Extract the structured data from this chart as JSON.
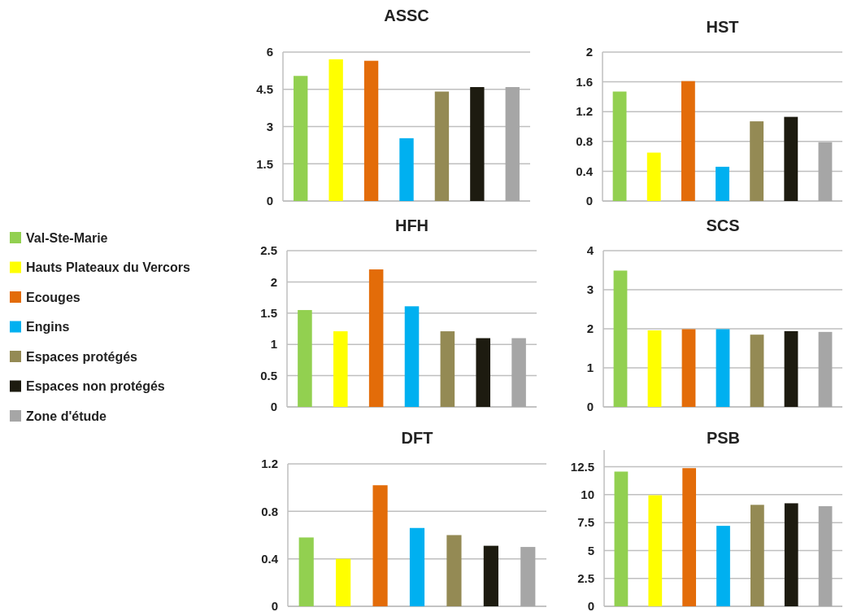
{
  "chart_data": [
    {
      "type": "bar",
      "title": "ASSC",
      "categories": [
        null
      ],
      "ylim": [
        0,
        6
      ],
      "yticks": [
        0,
        1.5,
        3,
        4.5,
        6
      ],
      "grid": "y",
      "legend": "left",
      "series": [
        {
          "name": "Val-Ste-Marie",
          "color": "#92d050",
          "values": [
            5.04
          ]
        },
        {
          "name": "Hauts Plateaux du Vercors",
          "color": "#ffff00",
          "values": [
            5.71
          ]
        },
        {
          "name": "Ecouges",
          "color": "#e36c09",
          "values": [
            5.65
          ]
        },
        {
          "name": "Engins",
          "color": "#00b0f0",
          "values": [
            2.53
          ]
        },
        {
          "name": "Espaces protégés",
          "color": "#948a54",
          "values": [
            4.41
          ]
        },
        {
          "name": "Espaces non protégés",
          "color": "#1d1b10",
          "values": [
            4.59
          ]
        },
        {
          "name": "Zone d'étude",
          "color": "#a6a6a6",
          "values": [
            4.59
          ]
        }
      ]
    },
    {
      "type": "bar",
      "title": "HST",
      "categories": [
        null
      ],
      "ylim": [
        0,
        2
      ],
      "yticks": [
        0,
        0.4,
        0.8,
        1.2,
        1.6,
        2
      ],
      "grid": "y",
      "series": [
        {
          "color": "#92d050",
          "values": [
            1.47
          ]
        },
        {
          "color": "#ffff00",
          "values": [
            0.65
          ]
        },
        {
          "color": "#e36c09",
          "values": [
            1.61
          ]
        },
        {
          "color": "#00b0f0",
          "values": [
            0.46
          ]
        },
        {
          "color": "#948a54",
          "values": [
            1.07
          ]
        },
        {
          "color": "#1d1b10",
          "values": [
            1.13
          ]
        },
        {
          "color": "#a6a6a6",
          "values": [
            0.79
          ]
        }
      ]
    },
    {
      "type": "bar",
      "title": "HFH",
      "categories": [
        null
      ],
      "ylim": [
        0,
        2.5
      ],
      "yticks": [
        0,
        0.5,
        1,
        1.5,
        2,
        2.5
      ],
      "grid": "y",
      "series": [
        {
          "color": "#92d050",
          "values": [
            1.55
          ]
        },
        {
          "color": "#ffff00",
          "values": [
            1.21
          ]
        },
        {
          "color": "#e36c09",
          "values": [
            2.2
          ]
        },
        {
          "color": "#00b0f0",
          "values": [
            1.61
          ]
        },
        {
          "color": "#948a54",
          "values": [
            1.21
          ]
        },
        {
          "color": "#1d1b10",
          "values": [
            1.1
          ]
        },
        {
          "color": "#a6a6a6",
          "values": [
            1.1
          ]
        }
      ]
    },
    {
      "type": "bar",
      "title": "SCS",
      "categories": [
        null
      ],
      "ylim": [
        0,
        4
      ],
      "yticks": [
        0,
        1,
        2,
        3,
        4
      ],
      "grid": "y",
      "series": [
        {
          "color": "#92d050",
          "values": [
            3.49
          ]
        },
        {
          "color": "#ffff00",
          "values": [
            1.96
          ]
        },
        {
          "color": "#e36c09",
          "values": [
            1.99
          ]
        },
        {
          "color": "#00b0f0",
          "values": [
            1.99
          ]
        },
        {
          "color": "#948a54",
          "values": [
            1.85
          ]
        },
        {
          "color": "#1d1b10",
          "values": [
            1.94
          ]
        },
        {
          "color": "#a6a6a6",
          "values": [
            1.92
          ]
        }
      ]
    },
    {
      "type": "bar",
      "title": "DFT",
      "categories": [
        null
      ],
      "ylim": [
        0,
        1.2
      ],
      "yticks": [
        0,
        0.4,
        0.8,
        1.2
      ],
      "grid": "y",
      "series": [
        {
          "color": "#92d050",
          "values": [
            0.58
          ]
        },
        {
          "color": "#ffff00",
          "values": [
            0.4
          ]
        },
        {
          "color": "#e36c09",
          "values": [
            1.02
          ]
        },
        {
          "color": "#00b0f0",
          "values": [
            0.66
          ]
        },
        {
          "color": "#948a54",
          "values": [
            0.6
          ]
        },
        {
          "color": "#1d1b10",
          "values": [
            0.51
          ]
        },
        {
          "color": "#a6a6a6",
          "values": [
            0.5
          ]
        }
      ]
    },
    {
      "type": "bar",
      "title": "PSB",
      "categories": [
        null
      ],
      "ylim": [
        0,
        14
      ],
      "yticks": [
        0,
        2.5,
        5,
        7.5,
        10,
        12.5
      ],
      "grid": "y",
      "series": [
        {
          "color": "#92d050",
          "values": [
            12.07
          ]
        },
        {
          "color": "#ffff00",
          "values": [
            9.95
          ]
        },
        {
          "color": "#e36c09",
          "values": [
            12.38
          ]
        },
        {
          "color": "#00b0f0",
          "values": [
            7.21
          ]
        },
        {
          "color": "#948a54",
          "values": [
            9.09
          ]
        },
        {
          "color": "#1d1b10",
          "values": [
            9.23
          ]
        },
        {
          "color": "#a6a6a6",
          "values": [
            8.97
          ]
        }
      ]
    }
  ]
}
